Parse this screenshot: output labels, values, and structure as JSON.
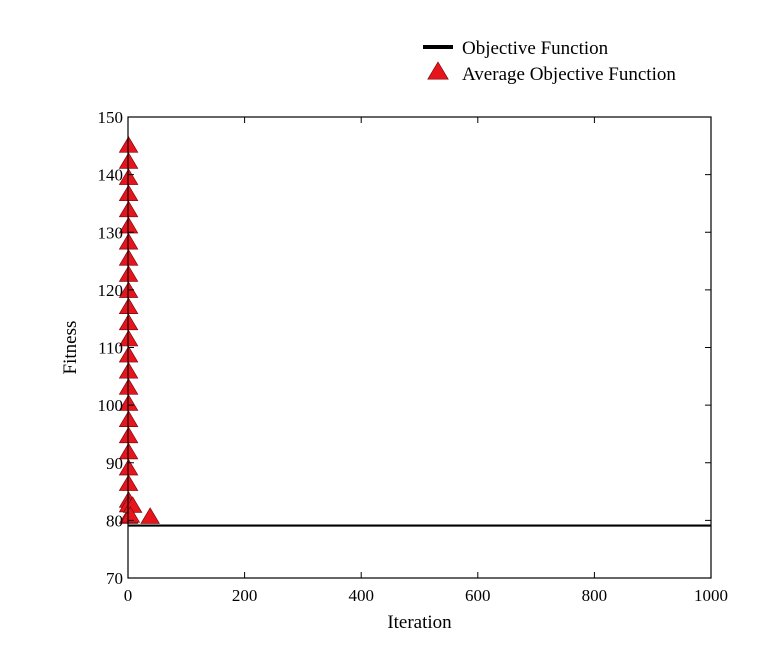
{
  "chart_data": {
    "type": "line",
    "xlabel": "Iteration",
    "ylabel": "Fitness",
    "xlim": [
      0,
      1000
    ],
    "ylim": [
      70,
      150
    ],
    "xticks": [
      0,
      200,
      400,
      600,
      800,
      1000
    ],
    "yticks": [
      70,
      80,
      90,
      100,
      110,
      120,
      130,
      140,
      150
    ],
    "grid": false,
    "legend_position": "top-right, above plot",
    "series": [
      {
        "name": "Objective Function",
        "style": "line",
        "color": "#000000",
        "x": [
          0,
          1000
        ],
        "y": [
          79.1,
          79.1
        ]
      },
      {
        "name": "Average Objective Function",
        "style": "markers",
        "marker": "triangle",
        "color": "#e8141b",
        "x": [
          1,
          1,
          1,
          1,
          1,
          1,
          1,
          1,
          1,
          1,
          1,
          1,
          1,
          1,
          1,
          1,
          1,
          1,
          1,
          1,
          1,
          1,
          1,
          1,
          1,
          8,
          4,
          38
        ],
        "y": [
          145,
          142.2,
          139.4,
          136.6,
          133.8,
          131,
          128.2,
          125.4,
          122.6,
          119.8,
          117,
          114.2,
          111.4,
          108.6,
          105.8,
          103,
          100.2,
          97.4,
          94.6,
          91.8,
          89,
          86.3,
          83.4,
          82.6,
          80.6,
          82.5,
          80.8,
          80.6
        ]
      }
    ]
  }
}
